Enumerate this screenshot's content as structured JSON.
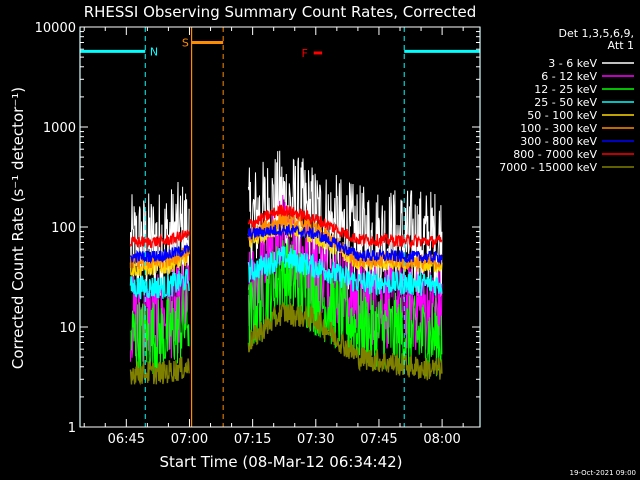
{
  "chart_data": {
    "type": "line",
    "title": "RHESSI Observing Summary Count Rates, Corrected",
    "xlabel": "Start Time (08-Mar-12 06:34:42)",
    "ylabel": "Corrected Count Rate (s⁻¹ detector⁻¹)",
    "yscale": "log",
    "ylim": [
      1,
      10000
    ],
    "xlim_minutes_after_0634": [
      0,
      95
    ],
    "x_ticks": [
      {
        "label": "06:45",
        "minutes": 11
      },
      {
        "label": "07:00",
        "minutes": 26
      },
      {
        "label": "07:15",
        "minutes": 41
      },
      {
        "label": "07:30",
        "minutes": 56
      },
      {
        "label": "07:45",
        "minutes": 71
      },
      {
        "label": "08:00",
        "minutes": 86
      }
    ],
    "y_ticks": [
      {
        "label": "1",
        "value": 1
      },
      {
        "label": "10",
        "value": 10
      },
      {
        "label": "100",
        "value": 100
      },
      {
        "label": "1000",
        "value": 1000
      },
      {
        "label": "10000",
        "value": 10000
      }
    ],
    "legend_header": [
      "Det 1,3,5,6,9,",
      "Att 1"
    ],
    "series": [
      {
        "name": "3 - 6 keV",
        "color": "#ffffff",
        "profile": [
          [
            12,
            60
          ],
          [
            20,
            70
          ],
          [
            26,
            90
          ],
          [
            40,
            110
          ],
          [
            48,
            180
          ],
          [
            56,
            120
          ],
          [
            66,
            75
          ],
          [
            82,
            70
          ],
          [
            86,
            70
          ]
        ]
      },
      {
        "name": "6 - 12 keV",
        "color": "#ff00ff",
        "profile": [
          [
            12,
            12
          ],
          [
            20,
            12
          ],
          [
            26,
            18
          ],
          [
            40,
            20
          ],
          [
            48,
            80
          ],
          [
            56,
            40
          ],
          [
            66,
            18
          ],
          [
            82,
            15
          ],
          [
            86,
            15
          ]
        ]
      },
      {
        "name": "12 - 25 keV",
        "color": "#00ff00",
        "profile": [
          [
            12,
            8
          ],
          [
            20,
            8
          ],
          [
            26,
            12
          ],
          [
            40,
            12
          ],
          [
            48,
            35
          ],
          [
            56,
            20
          ],
          [
            66,
            10
          ],
          [
            82,
            8
          ],
          [
            86,
            8
          ]
        ]
      },
      {
        "name": "25 - 50 keV",
        "color": "#00ffff",
        "profile": [
          [
            12,
            25
          ],
          [
            20,
            25
          ],
          [
            26,
            30
          ],
          [
            40,
            35
          ],
          [
            48,
            50
          ],
          [
            56,
            40
          ],
          [
            66,
            28
          ],
          [
            82,
            27
          ],
          [
            86,
            27
          ]
        ]
      },
      {
        "name": "50 - 100 keV",
        "color": "#ffd700",
        "profile": [
          [
            12,
            38
          ],
          [
            20,
            40
          ],
          [
            26,
            50
          ],
          [
            40,
            75
          ],
          [
            48,
            100
          ],
          [
            56,
            80
          ],
          [
            66,
            45
          ],
          [
            82,
            42
          ],
          [
            86,
            42
          ]
        ]
      },
      {
        "name": "100 - 300 keV",
        "color": "#ff8c00",
        "profile": [
          [
            12,
            45
          ],
          [
            20,
            45
          ],
          [
            26,
            55
          ],
          [
            40,
            80
          ],
          [
            48,
            120
          ],
          [
            56,
            95
          ],
          [
            66,
            48
          ],
          [
            82,
            45
          ],
          [
            86,
            45
          ]
        ]
      },
      {
        "name": "300 - 800 keV",
        "color": "#0000ff",
        "profile": [
          [
            12,
            50
          ],
          [
            20,
            52
          ],
          [
            26,
            60
          ],
          [
            40,
            85
          ],
          [
            48,
            95
          ],
          [
            56,
            85
          ],
          [
            66,
            52
          ],
          [
            82,
            50
          ],
          [
            86,
            50
          ]
        ]
      },
      {
        "name": "800 - 7000 keV",
        "color": "#ff0000",
        "profile": [
          [
            12,
            70
          ],
          [
            20,
            72
          ],
          [
            26,
            85
          ],
          [
            40,
            105
          ],
          [
            48,
            150
          ],
          [
            56,
            120
          ],
          [
            66,
            75
          ],
          [
            82,
            72
          ],
          [
            86,
            72
          ]
        ]
      },
      {
        "name": "7000 - 15000 keV",
        "color": "#808000",
        "profile": [
          [
            12,
            3.5
          ],
          [
            20,
            3.5
          ],
          [
            26,
            4
          ],
          [
            40,
            7
          ],
          [
            48,
            14
          ],
          [
            56,
            12
          ],
          [
            66,
            5
          ],
          [
            82,
            3.8
          ],
          [
            86,
            3.8
          ]
        ]
      }
    ],
    "segments": [
      [
        12,
        26
      ],
      [
        40,
        86
      ]
    ],
    "flags": [
      {
        "label": "N",
        "color": "#00ffff",
        "value": 5700,
        "ranges": [
          [
            0,
            15.5
          ],
          [
            77,
            95
          ]
        ],
        "dashed_at": [
          15.5,
          77
        ],
        "solid_at": [
          0,
          95
        ]
      },
      {
        "label": "S",
        "color": "#ff8c00",
        "value": 7000,
        "ranges": [
          [
            26.5,
            34
          ]
        ],
        "dashed_at": [
          34
        ],
        "solid_at": [
          26.5
        ]
      },
      {
        "label": "F",
        "color": "#ff0000",
        "value": 5500,
        "ranges": [
          [
            55.5,
            57.5
          ]
        ]
      }
    ]
  },
  "timestamp": "19-Oct-2021 09:00"
}
